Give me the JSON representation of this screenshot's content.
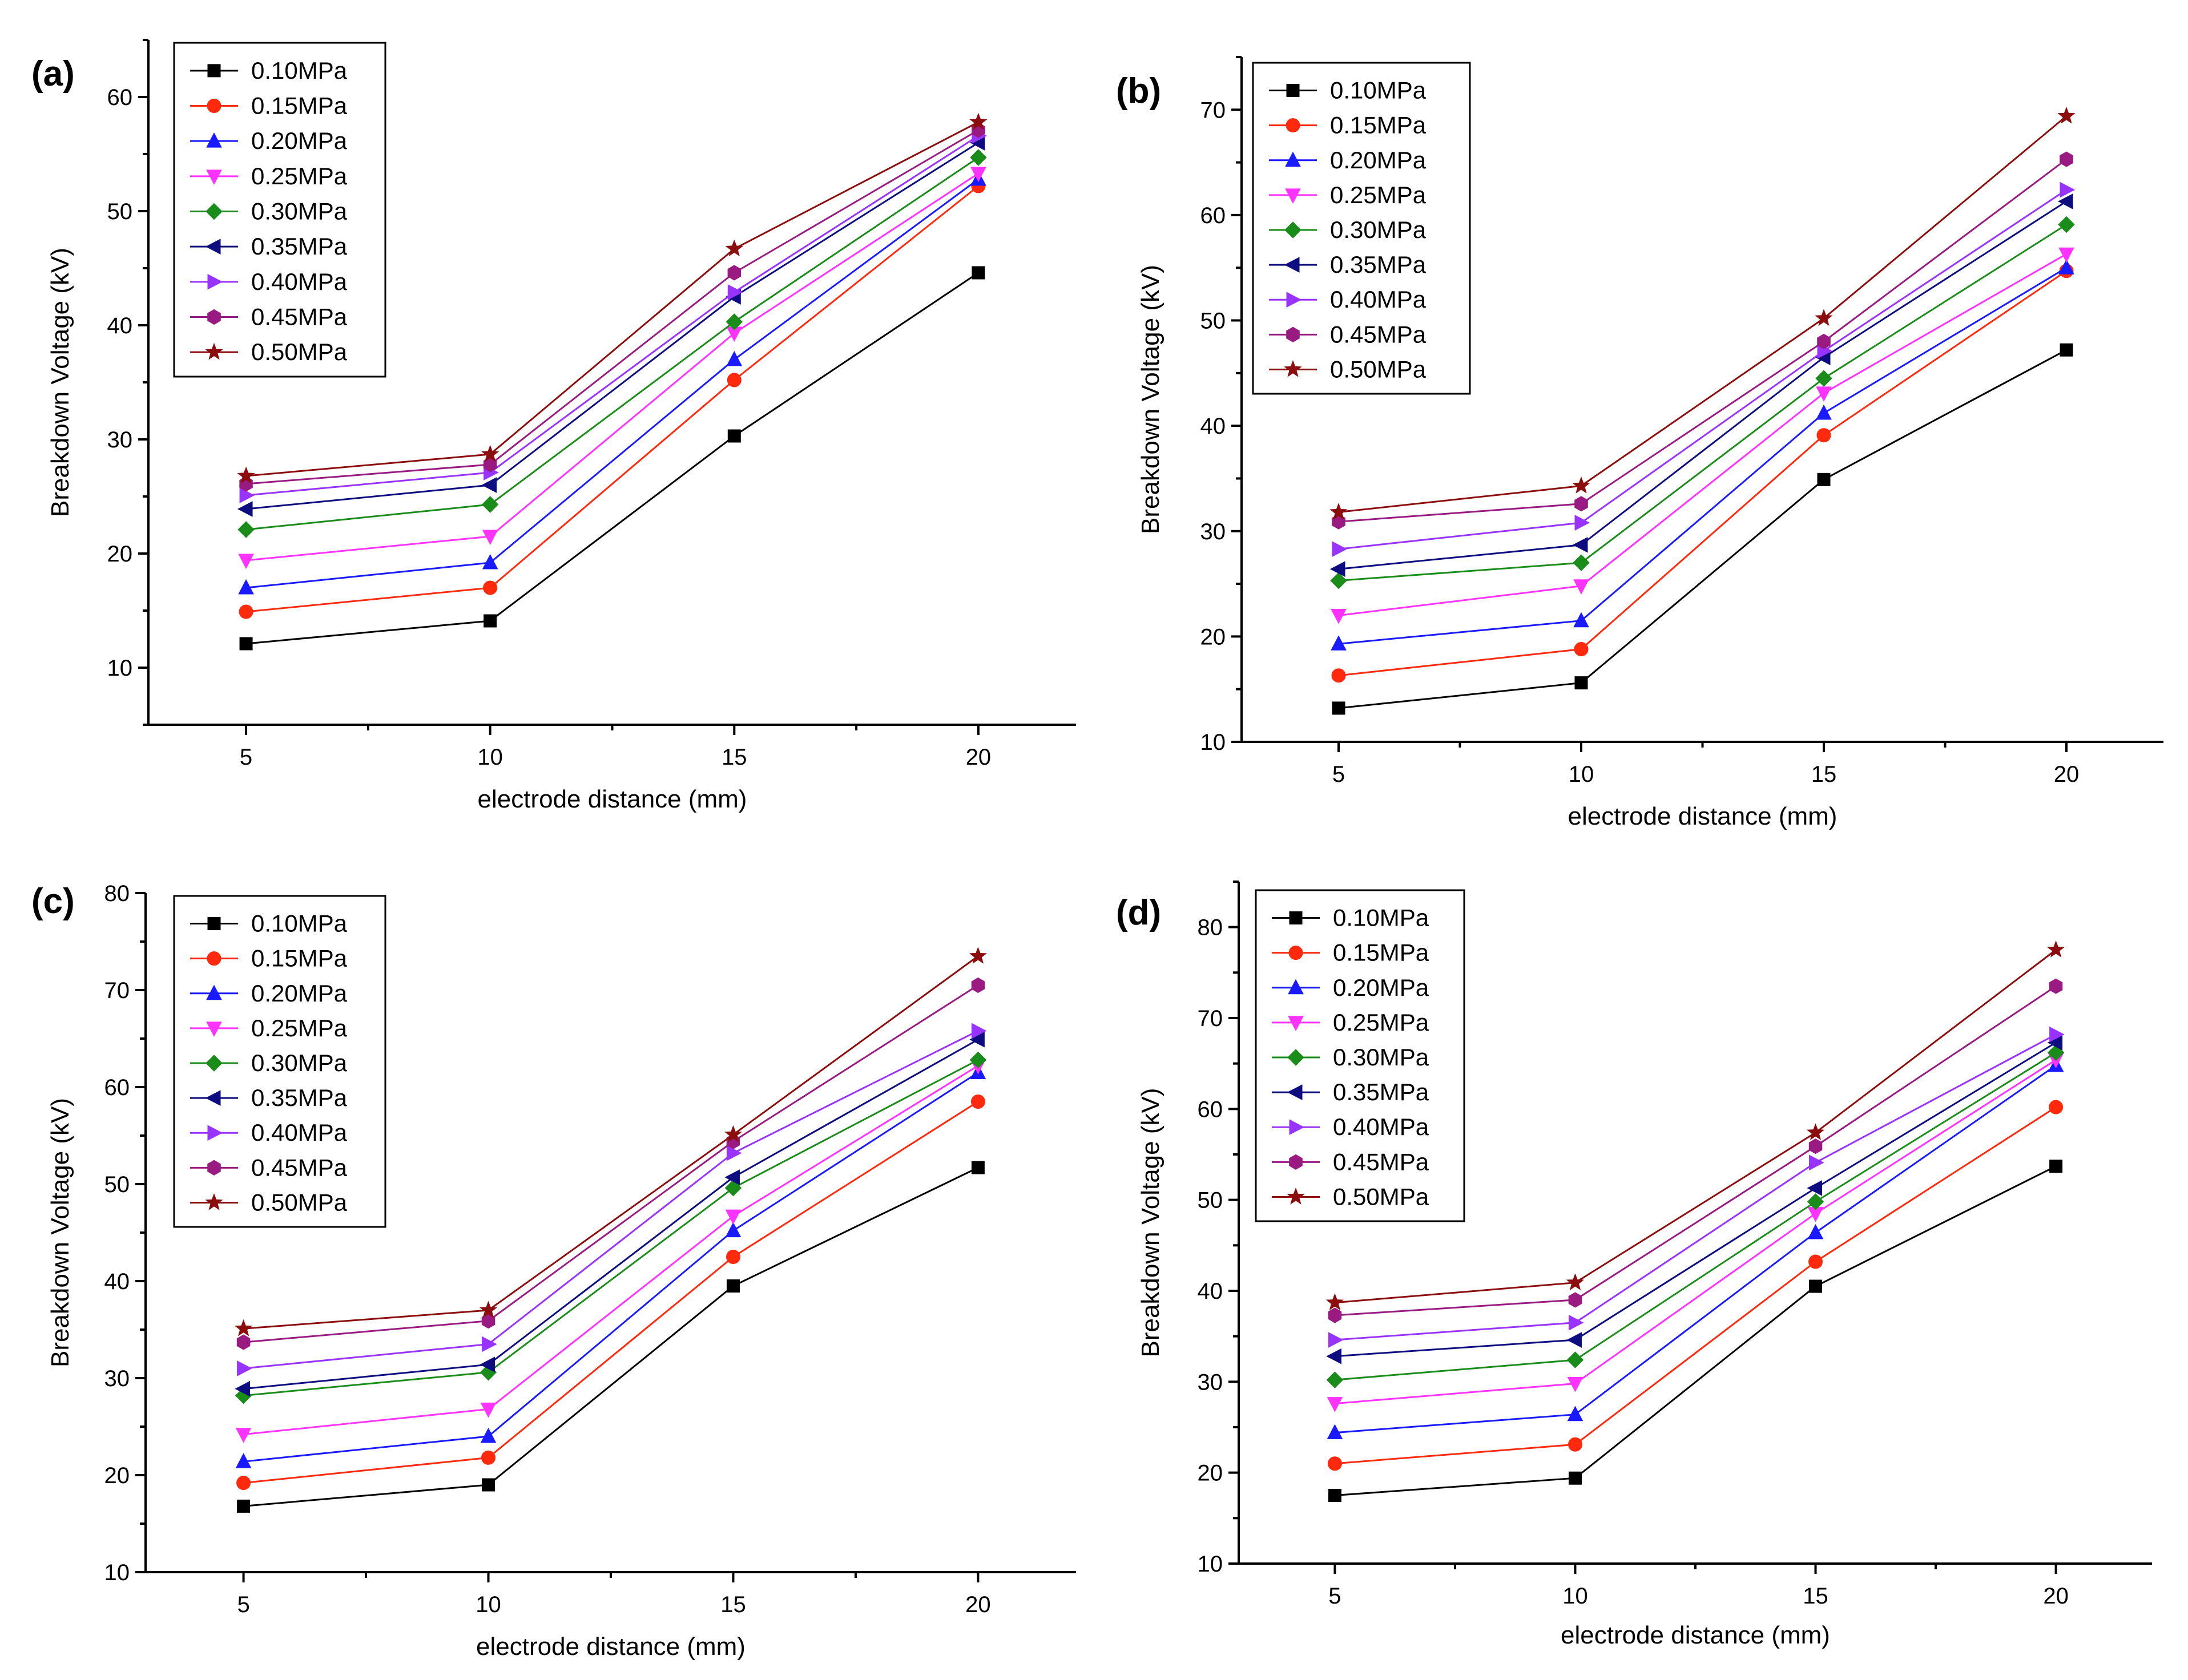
{
  "chart_data": [
    {
      "type": "line",
      "panel_label": "(a)",
      "xlabel": "electrode distance (mm)",
      "ylabel": "Breakdown Voltage (kV)",
      "x": [
        5,
        10,
        15,
        20
      ],
      "xticks": [
        5,
        10,
        15,
        20
      ],
      "xlim": [
        3,
        22
      ],
      "ylim": [
        5,
        65
      ],
      "yticks": [
        10,
        20,
        30,
        40,
        50,
        60
      ],
      "legend_position": "top-left",
      "series": [
        {
          "name": "0.10MPa",
          "color": "#000000",
          "marker": "square",
          "values": [
            12.1,
            14.1,
            30.3,
            44.6
          ]
        },
        {
          "name": "0.15MPa",
          "color": "#ff2a0d",
          "marker": "circle",
          "values": [
            14.9,
            17.0,
            35.2,
            52.2
          ]
        },
        {
          "name": "0.20MPa",
          "color": "#1a1aff",
          "marker": "triangle-up",
          "values": [
            17.0,
            19.2,
            37.0,
            52.8
          ]
        },
        {
          "name": "0.25MPa",
          "color": "#ff33ff",
          "marker": "triangle-down",
          "values": [
            19.4,
            21.5,
            39.3,
            53.3
          ]
        },
        {
          "name": "0.30MPa",
          "color": "#1a8c1a",
          "marker": "diamond",
          "values": [
            22.1,
            24.3,
            40.3,
            54.7
          ]
        },
        {
          "name": "0.35MPa",
          "color": "#0d0d80",
          "marker": "triangle-left",
          "values": [
            23.9,
            26.0,
            42.5,
            56.0
          ]
        },
        {
          "name": "0.40MPa",
          "color": "#9933ff",
          "marker": "triangle-right",
          "values": [
            25.1,
            27.1,
            42.9,
            56.6
          ]
        },
        {
          "name": "0.45MPa",
          "color": "#991a80",
          "marker": "hexagon",
          "values": [
            26.1,
            27.8,
            44.6,
            57.1
          ]
        },
        {
          "name": "0.50MPa",
          "color": "#8b0d0d",
          "marker": "star",
          "values": [
            26.8,
            28.7,
            46.7,
            57.8
          ]
        }
      ]
    },
    {
      "type": "line",
      "panel_label": "(b)",
      "xlabel": "electrode distance (mm)",
      "ylabel": "Breakdown Voltage (kV)",
      "x": [
        5,
        10,
        15,
        20
      ],
      "xticks": [
        5,
        10,
        15,
        20
      ],
      "xlim": [
        3,
        22
      ],
      "ylim": [
        10,
        75
      ],
      "yticks": [
        10,
        20,
        30,
        40,
        50,
        60,
        70
      ],
      "legend_position": "top-left",
      "series": [
        {
          "name": "0.10MPa",
          "color": "#000000",
          "marker": "square",
          "values": [
            13.2,
            15.6,
            34.9,
            47.2
          ]
        },
        {
          "name": "0.15MPa",
          "color": "#ff2a0d",
          "marker": "circle",
          "values": [
            16.3,
            18.8,
            39.1,
            54.7
          ]
        },
        {
          "name": "0.20MPa",
          "color": "#1a1aff",
          "marker": "triangle-up",
          "values": [
            19.3,
            21.5,
            41.2,
            55.0
          ]
        },
        {
          "name": "0.25MPa",
          "color": "#ff33ff",
          "marker": "triangle-down",
          "values": [
            22.0,
            24.8,
            43.1,
            56.3
          ]
        },
        {
          "name": "0.30MPa",
          "color": "#1a8c1a",
          "marker": "diamond",
          "values": [
            25.3,
            27.0,
            44.5,
            59.1
          ]
        },
        {
          "name": "0.35MPa",
          "color": "#0d0d80",
          "marker": "triangle-left",
          "values": [
            26.4,
            28.7,
            46.5,
            61.3
          ]
        },
        {
          "name": "0.40MPa",
          "color": "#9933ff",
          "marker": "triangle-right",
          "values": [
            28.3,
            30.8,
            47.1,
            62.4
          ]
        },
        {
          "name": "0.45MPa",
          "color": "#991a80",
          "marker": "hexagon",
          "values": [
            30.9,
            32.6,
            48.0,
            65.3
          ]
        },
        {
          "name": "0.50MPa",
          "color": "#8b0d0d",
          "marker": "star",
          "values": [
            31.8,
            34.3,
            50.2,
            69.4
          ]
        }
      ]
    },
    {
      "type": "line",
      "panel_label": "(c)",
      "xlabel": "electrode distance (mm)",
      "ylabel": "Breakdown Voltage (kV)",
      "x": [
        5,
        10,
        15,
        20
      ],
      "xticks": [
        5,
        10,
        15,
        20
      ],
      "xlim": [
        3,
        22
      ],
      "ylim": [
        10,
        80
      ],
      "yticks": [
        10,
        20,
        30,
        40,
        50,
        60,
        70,
        80
      ],
      "legend_position": "top-left",
      "series": [
        {
          "name": "0.10MPa",
          "color": "#000000",
          "marker": "square",
          "values": [
            16.8,
            19.0,
            39.5,
            51.7
          ]
        },
        {
          "name": "0.15MPa",
          "color": "#ff2a0d",
          "marker": "circle",
          "values": [
            19.2,
            21.8,
            42.5,
            58.5
          ]
        },
        {
          "name": "0.20MPa",
          "color": "#1a1aff",
          "marker": "triangle-up",
          "values": [
            21.4,
            24.0,
            45.2,
            61.5
          ]
        },
        {
          "name": "0.25MPa",
          "color": "#ff33ff",
          "marker": "triangle-down",
          "values": [
            24.2,
            26.8,
            46.7,
            62.2
          ]
        },
        {
          "name": "0.30MPa",
          "color": "#1a8c1a",
          "marker": "diamond",
          "values": [
            28.2,
            30.6,
            49.6,
            62.8
          ]
        },
        {
          "name": "0.35MPa",
          "color": "#0d0d80",
          "marker": "triangle-left",
          "values": [
            28.9,
            31.4,
            50.7,
            64.9
          ]
        },
        {
          "name": "0.40MPa",
          "color": "#9933ff",
          "marker": "triangle-right",
          "values": [
            31.0,
            33.5,
            53.2,
            65.8
          ]
        },
        {
          "name": "0.45MPa",
          "color": "#991a80",
          "marker": "hexagon",
          "values": [
            33.7,
            35.9,
            54.4,
            70.5
          ]
        },
        {
          "name": "0.50MPa",
          "color": "#8b0d0d",
          "marker": "star",
          "values": [
            35.1,
            37.0,
            55.1,
            73.5
          ]
        }
      ]
    },
    {
      "type": "line",
      "panel_label": "(d)",
      "xlabel": "electrode distance (mm)",
      "ylabel": "Breakdown Voltage (kV)",
      "x": [
        5,
        10,
        15,
        20
      ],
      "xticks": [
        5,
        10,
        15,
        20
      ],
      "xlim": [
        3,
        22
      ],
      "ylim": [
        10,
        85
      ],
      "yticks": [
        10,
        20,
        30,
        40,
        50,
        60,
        70,
        80
      ],
      "legend_position": "top-left",
      "series": [
        {
          "name": "0.10MPa",
          "color": "#000000",
          "marker": "square",
          "values": [
            17.5,
            19.4,
            40.5,
            53.7
          ]
        },
        {
          "name": "0.15MPa",
          "color": "#ff2a0d",
          "marker": "circle",
          "values": [
            21.0,
            23.1,
            43.2,
            60.2
          ]
        },
        {
          "name": "0.20MPa",
          "color": "#1a1aff",
          "marker": "triangle-up",
          "values": [
            24.4,
            26.4,
            46.4,
            64.8
          ]
        },
        {
          "name": "0.25MPa",
          "color": "#ff33ff",
          "marker": "triangle-down",
          "values": [
            27.6,
            29.8,
            48.5,
            65.4
          ]
        },
        {
          "name": "0.30MPa",
          "color": "#1a8c1a",
          "marker": "diamond",
          "values": [
            30.2,
            32.4,
            49.8,
            66.2
          ]
        },
        {
          "name": "0.35MPa",
          "color": "#0d0d80",
          "marker": "triangle-left",
          "values": [
            32.8,
            34.6,
            51.3,
            67.3
          ]
        },
        {
          "name": "0.40MPa",
          "color": "#9933ff",
          "marker": "triangle-right",
          "values": [
            34.6,
            36.5,
            54.1,
            68.2
          ]
        },
        {
          "name": "0.45MPa",
          "color": "#991a80",
          "marker": "hexagon",
          "values": [
            37.3,
            39.0,
            55.9,
            73.5
          ]
        },
        {
          "name": "0.50MPa",
          "color": "#8b0d0d",
          "marker": "star",
          "values": [
            38.7,
            40.9,
            57.4,
            77.5
          ]
        }
      ]
    }
  ]
}
